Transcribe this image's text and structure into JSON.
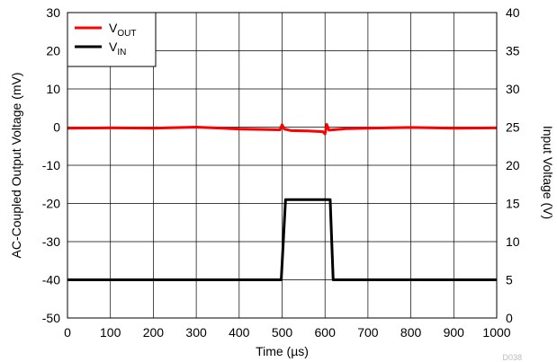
{
  "chart_data": {
    "type": "line",
    "title": "",
    "xlabel": "Time (µs)",
    "ylabel": "AC-Coupled Output Voltage (mV)",
    "y2label": "Input Voltage (V)",
    "xlim": [
      0,
      1000
    ],
    "ylim": [
      -50,
      30
    ],
    "y2lim": [
      0,
      40
    ],
    "x_ticks": [
      0,
      100,
      200,
      300,
      400,
      500,
      600,
      700,
      800,
      900,
      1000
    ],
    "y_ticks": [
      -50,
      -40,
      -30,
      -20,
      -10,
      0,
      10,
      20,
      30
    ],
    "y2_ticks": [
      0,
      5,
      10,
      15,
      20,
      25,
      30,
      35,
      40
    ],
    "grid": true,
    "legend_position": "top-left",
    "figure_id": "D038",
    "series": [
      {
        "name_main": "V",
        "name_sub": "OUT",
        "color": "#ff0000",
        "axis": "left",
        "points": [
          [
            0,
            -0.3
          ],
          [
            100,
            -0.2
          ],
          [
            200,
            -0.3
          ],
          [
            300,
            0
          ],
          [
            400,
            -0.5
          ],
          [
            495,
            -0.7
          ],
          [
            500,
            0.6
          ],
          [
            505,
            -0.5
          ],
          [
            520,
            -0.9
          ],
          [
            560,
            -1.0
          ],
          [
            595,
            -1.2
          ],
          [
            600,
            -1.8
          ],
          [
            604,
            0.7
          ],
          [
            609,
            -0.8
          ],
          [
            650,
            -0.4
          ],
          [
            700,
            -0.3
          ],
          [
            800,
            -0.1
          ],
          [
            900,
            -0.3
          ],
          [
            1000,
            -0.2
          ]
        ]
      },
      {
        "name_main": "V",
        "name_sub": "IN",
        "color": "#000000",
        "axis": "right",
        "points": [
          [
            0,
            5
          ],
          [
            498,
            5
          ],
          [
            508,
            15.5
          ],
          [
            612,
            15.5
          ],
          [
            619,
            5
          ],
          [
            1000,
            5
          ]
        ]
      }
    ]
  }
}
